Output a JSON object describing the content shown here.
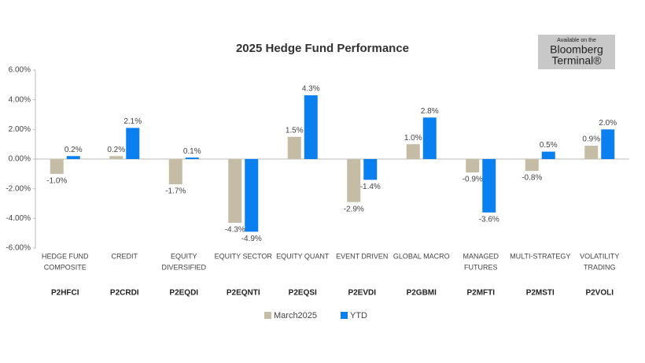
{
  "chart_data": {
    "type": "bar",
    "title": "2025 Hedge Fund Performance",
    "badge": [
      "Available on the",
      "Bloomberg",
      "Terminal®"
    ],
    "categories": [
      [
        "HEDGE FUND",
        "COMPOSITE"
      ],
      [
        "CREDIT"
      ],
      [
        "EQUITY",
        "DIVERSIFIED"
      ],
      [
        "EQUITY SECTOR"
      ],
      [
        "EQUITY QUANT"
      ],
      [
        "EVENT DRIVEN"
      ],
      [
        "GLOBAL MACRO"
      ],
      [
        "MANAGED",
        "FUTURES"
      ],
      [
        "MULTI-STRATEGY"
      ],
      [
        "VOLATILITY",
        "TRADING"
      ]
    ],
    "codes": [
      "P2HFCI",
      "P2CRDI",
      "P2EQDI",
      "P2EQNTI",
      "P2EQSI",
      "P2EVDI",
      "P2GBMI",
      "P2MFTI",
      "P2MSTI",
      "P2VOLI"
    ],
    "series": [
      {
        "name": "March2025",
        "color": "#c4bca4",
        "values": [
          -1.0,
          0.2,
          -1.7,
          -4.3,
          1.5,
          -2.9,
          1.0,
          -0.9,
          -0.8,
          0.9
        ],
        "value_labels": [
          "-1.0%",
          "0.2%",
          "-1.7%",
          "-4.3%",
          "1.5%",
          "-2.9%",
          "1.0%",
          "-0.9%",
          "-0.8%",
          "0.9%"
        ]
      },
      {
        "name": "YTD",
        "color": "#0a7ff0",
        "values": [
          0.2,
          2.1,
          0.1,
          -4.9,
          4.3,
          -1.4,
          2.8,
          -3.6,
          0.5,
          2.0
        ],
        "value_labels": [
          "0.2%",
          "2.1%",
          "0.1%",
          "-4.9%",
          "4.3%",
          "-1.4%",
          "2.8%",
          "-3.6%",
          "0.5%",
          "2.0%"
        ]
      }
    ],
    "ylim": [
      -6,
      6
    ],
    "yticks": [
      {
        "value": -6,
        "label": "-6.00%"
      },
      {
        "value": -4,
        "label": "-4.00%"
      },
      {
        "value": -2,
        "label": "-2.00%"
      },
      {
        "value": 0,
        "label": "0.00%"
      },
      {
        "value": 2,
        "label": "2.00%"
      },
      {
        "value": 4,
        "label": "4.00%"
      },
      {
        "value": 6,
        "label": "6.00%"
      }
    ],
    "grid": false,
    "legend": "bottom"
  }
}
